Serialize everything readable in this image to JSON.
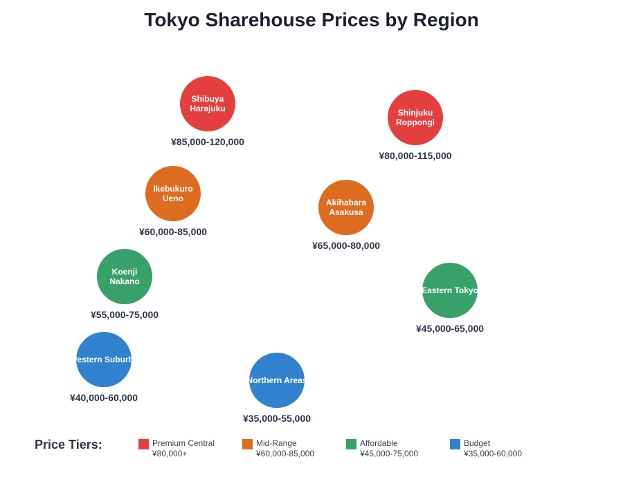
{
  "title": "Tokyo Sharehouse Prices by Region",
  "colors": {
    "premium": "#e53e3e",
    "mid": "#dd6b20",
    "affordable": "#38a169",
    "budget": "#3182ce"
  },
  "regions": [
    {
      "line1": "Shibuya",
      "line2": "Harajuku",
      "price": "¥85,000-120,000",
      "tier": "premium"
    },
    {
      "line1": "Shinjuku",
      "line2": "Roppongi",
      "price": "¥80,000-115,000",
      "tier": "premium"
    },
    {
      "line1": "Ikebukuro",
      "line2": "Ueno",
      "price": "¥60,000-85,000",
      "tier": "mid"
    },
    {
      "line1": "Akihabara",
      "line2": "Asakusa",
      "price": "¥65,000-80,000",
      "tier": "mid"
    },
    {
      "line1": "Koenji",
      "line2": "Nakano",
      "price": "¥55,000-75,000",
      "tier": "affordable"
    },
    {
      "line1": "Eastern Tokyo",
      "line2": "",
      "price": "¥45,000-65,000",
      "tier": "affordable"
    },
    {
      "line1": "Western Suburbs",
      "line2": "",
      "price": "¥40,000-60,000",
      "tier": "budget"
    },
    {
      "line1": "Northern Areas",
      "line2": "",
      "price": "¥35,000-55,000",
      "tier": "budget"
    }
  ],
  "legend": {
    "title": "Price Tiers:",
    "items": [
      {
        "name": "Premium Central",
        "range": "¥80,000+",
        "tier": "premium"
      },
      {
        "name": "Mid-Range",
        "range": "¥60,000-85,000",
        "tier": "mid"
      },
      {
        "name": "Affordable",
        "range": "¥45,000-75,000",
        "tier": "affordable"
      },
      {
        "name": "Budget",
        "range": "¥35,000-60,000",
        "tier": "budget"
      }
    ]
  }
}
